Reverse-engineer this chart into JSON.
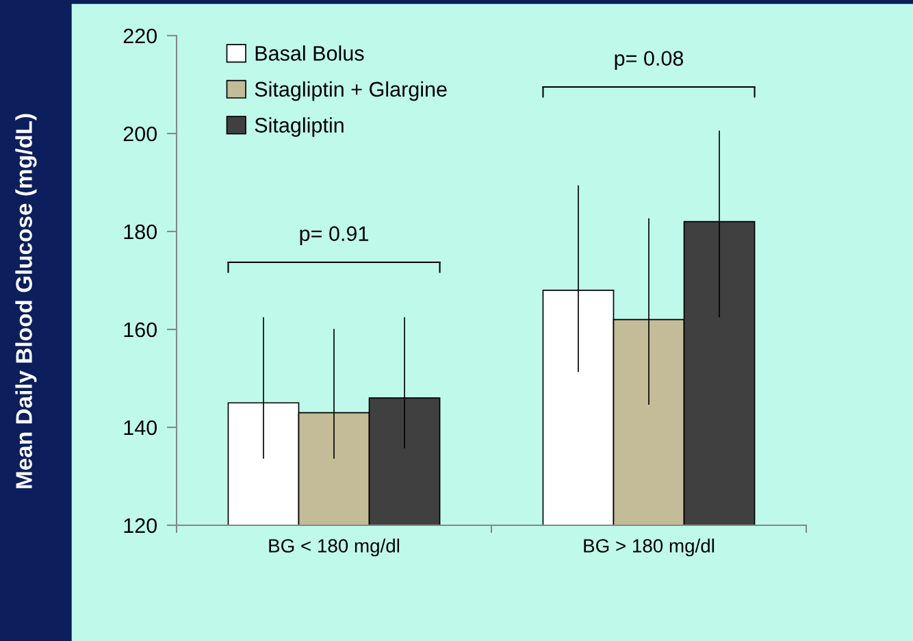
{
  "chart_data": {
    "type": "bar",
    "ylabel": "Mean Daily Blood Glucose (mg/dL)",
    "categories": [
      "BG < 180 mg/dl",
      "BG > 180 mg/dl"
    ],
    "series": [
      {
        "name": "Basal Bolus",
        "color": "#ffffff",
        "values": [
          145,
          168
        ],
        "errors": [
          [
            133.6,
            162.5
          ],
          [
            151.3,
            189.4
          ]
        ]
      },
      {
        "name": "Sitagliptin + Glargine",
        "color": "#c4bc98",
        "values": [
          143,
          162
        ],
        "errors": [
          [
            133.6,
            160.1
          ],
          [
            144.6,
            182.7
          ]
        ]
      },
      {
        "name": "Sitagliptin",
        "color": "#404040",
        "values": [
          146,
          182
        ],
        "errors": [
          [
            135.7,
            162.5
          ],
          [
            162.5,
            200.6
          ]
        ]
      }
    ],
    "ylim": [
      120,
      220
    ],
    "yticks": [
      120,
      140,
      160,
      180,
      200,
      220
    ],
    "grid": false,
    "legend": "top left",
    "annotations": [
      "p= 0.91",
      "p= 0.08"
    ]
  }
}
